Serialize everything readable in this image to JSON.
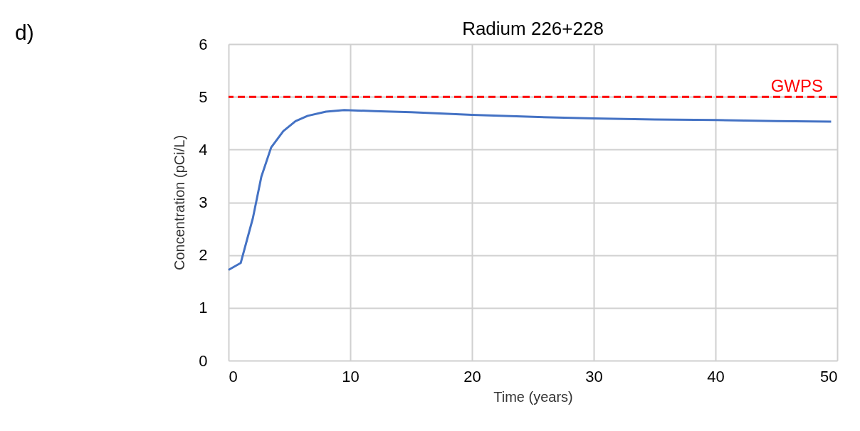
{
  "chart_data": {
    "type": "line",
    "title": "Radium 226+228",
    "xlabel": "Time (years)",
    "ylabel": "Concentration (pCi/L)",
    "x": [
      0,
      1,
      2,
      2.7,
      3.5,
      4.5,
      5.5,
      6.5,
      8,
      9.5,
      12,
      15,
      20,
      25,
      30,
      35,
      40,
      45,
      49.5
    ],
    "series": [
      {
        "color": "#4472c4",
        "values": [
          1.72,
          1.85,
          2.7,
          3.49,
          4.04,
          4.35,
          4.54,
          4.64,
          4.72,
          4.75,
          4.73,
          4.71,
          4.66,
          4.62,
          4.59,
          4.57,
          4.56,
          4.54,
          4.53
        ]
      }
    ],
    "xlim": [
      0,
      50
    ],
    "xticks": [
      0,
      10,
      20,
      30,
      40,
      50
    ],
    "ylim": [
      0,
      6
    ],
    "yticks": [
      0,
      1,
      2,
      3,
      4,
      5,
      6
    ],
    "grid": true,
    "marker": "none",
    "line_style": "solid",
    "ref_lines": [
      {
        "axis": "y",
        "value": 5,
        "label": "GWPS",
        "color": "#ff0000",
        "line_style": "dashed"
      }
    ],
    "annotations": [
      "d)"
    ]
  }
}
